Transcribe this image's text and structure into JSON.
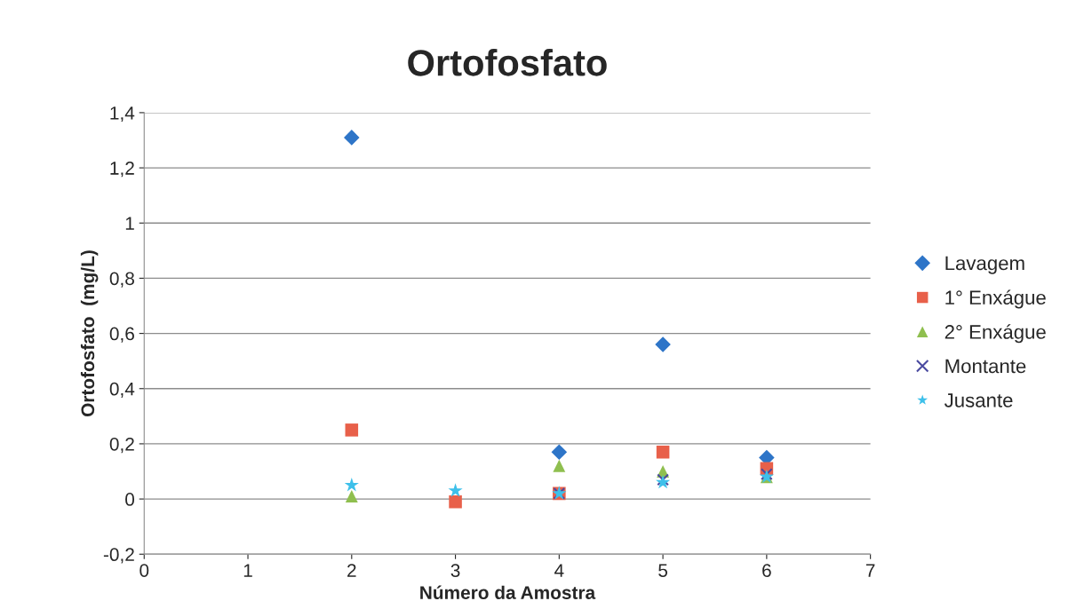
{
  "chart_data": {
    "type": "scatter",
    "title": "Ortofosfato",
    "xlabel": "Número da Amostra",
    "ylabel": "Ortofosfato  (mg/L)",
    "x": [
      2,
      3,
      4,
      5,
      6
    ],
    "series": [
      {
        "name": "Lavagem",
        "color": "#2e75c8",
        "marker": "diamond",
        "values": [
          1.31,
          null,
          0.17,
          0.56,
          0.15
        ]
      },
      {
        "name": "1° Enxágue",
        "color": "#e8604a",
        "marker": "square",
        "values": [
          0.25,
          -0.01,
          0.02,
          0.17,
          0.11
        ]
      },
      {
        "name": "2° Enxágue",
        "color": "#8fbf4f",
        "marker": "triangle",
        "values": [
          0.01,
          null,
          0.12,
          0.1,
          0.08
        ]
      },
      {
        "name": "Montante",
        "color": "#4a4aa0",
        "marker": "cross",
        "values": [
          null,
          null,
          0.02,
          0.07,
          0.09
        ]
      },
      {
        "name": "Jusante",
        "color": "#3ec0ea",
        "marker": "star",
        "values": [
          0.05,
          0.03,
          0.02,
          0.06,
          0.08
        ]
      }
    ],
    "xlim": [
      0,
      7
    ],
    "xticks": [
      0,
      1,
      2,
      3,
      4,
      5,
      6,
      7
    ],
    "ylim": [
      -0.2,
      1.4
    ],
    "yticks": [
      {
        "value": -0.2,
        "label": "-0,2"
      },
      {
        "value": 0,
        "label": "0"
      },
      {
        "value": 0.2,
        "label": "0,2"
      },
      {
        "value": 0.4,
        "label": "0,4"
      },
      {
        "value": 0.6,
        "label": "0,6"
      },
      {
        "value": 0.8,
        "label": "0,8"
      },
      {
        "value": 1,
        "label": "1"
      },
      {
        "value": 1.2,
        "label": "1,2"
      },
      {
        "value": 1.4,
        "label": "1,4"
      }
    ],
    "grid": "y",
    "legend": "right"
  }
}
